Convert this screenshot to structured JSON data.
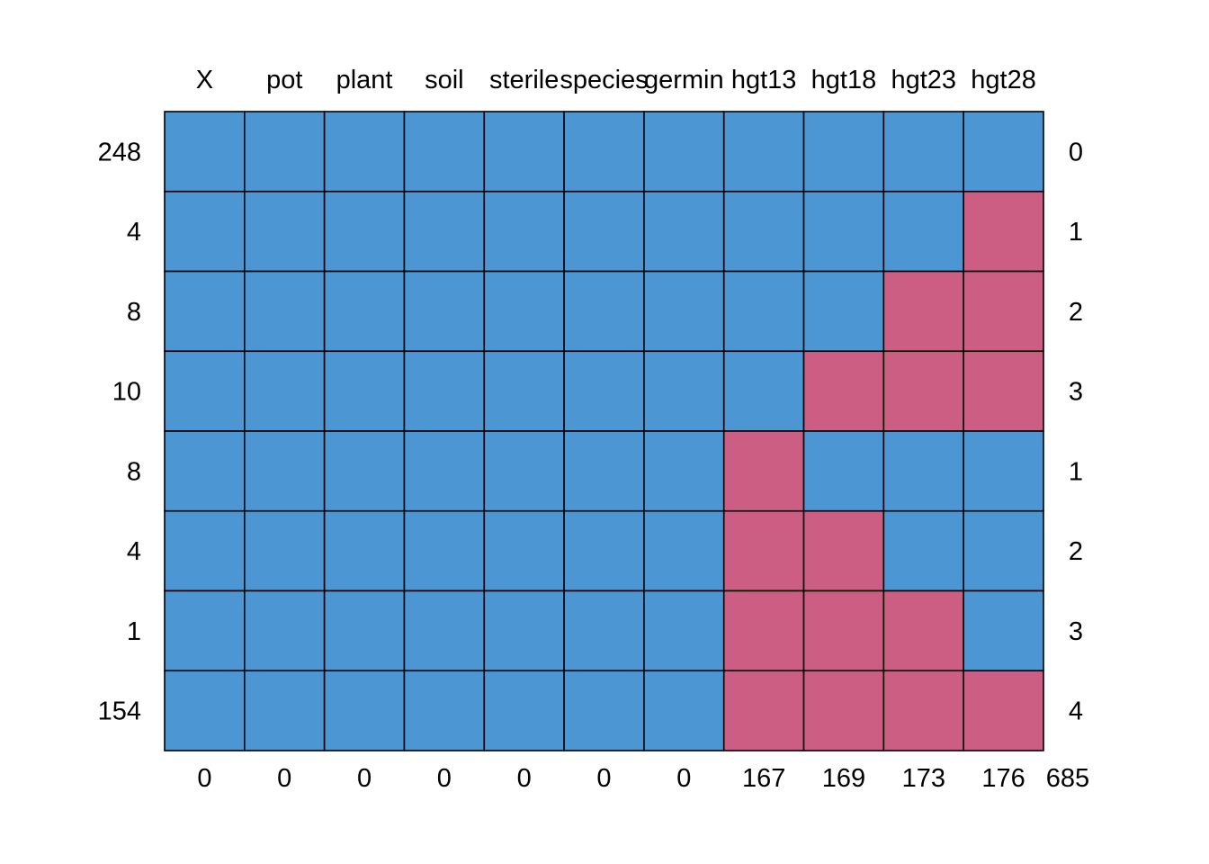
{
  "chart_data": {
    "type": "heatmap",
    "columns": [
      "X",
      "pot",
      "plant",
      "soil",
      "sterile",
      "species",
      "germin",
      "hgt13",
      "hgt18",
      "hgt23",
      "hgt28"
    ],
    "row_counts": [
      248,
      4,
      8,
      10,
      8,
      4,
      1,
      154
    ],
    "row_missing": [
      0,
      1,
      2,
      3,
      1,
      2,
      3,
      4
    ],
    "column_missing": [
      0,
      0,
      0,
      0,
      0,
      0,
      0,
      167,
      169,
      173,
      176
    ],
    "total_missing": 685,
    "pattern": [
      [
        1,
        1,
        1,
        1,
        1,
        1,
        1,
        1,
        1,
        1,
        1
      ],
      [
        1,
        1,
        1,
        1,
        1,
        1,
        1,
        1,
        1,
        1,
        0
      ],
      [
        1,
        1,
        1,
        1,
        1,
        1,
        1,
        1,
        1,
        0,
        0
      ],
      [
        1,
        1,
        1,
        1,
        1,
        1,
        1,
        1,
        0,
        0,
        0
      ],
      [
        1,
        1,
        1,
        1,
        1,
        1,
        1,
        0,
        1,
        1,
        1
      ],
      [
        1,
        1,
        1,
        1,
        1,
        1,
        1,
        0,
        0,
        1,
        1
      ],
      [
        1,
        1,
        1,
        1,
        1,
        1,
        1,
        0,
        0,
        0,
        1
      ],
      [
        1,
        1,
        1,
        1,
        1,
        1,
        1,
        0,
        0,
        0,
        0
      ]
    ],
    "colors": {
      "observed": "#4D96D4",
      "missing": "#CC5E84",
      "border": "#000000"
    }
  }
}
